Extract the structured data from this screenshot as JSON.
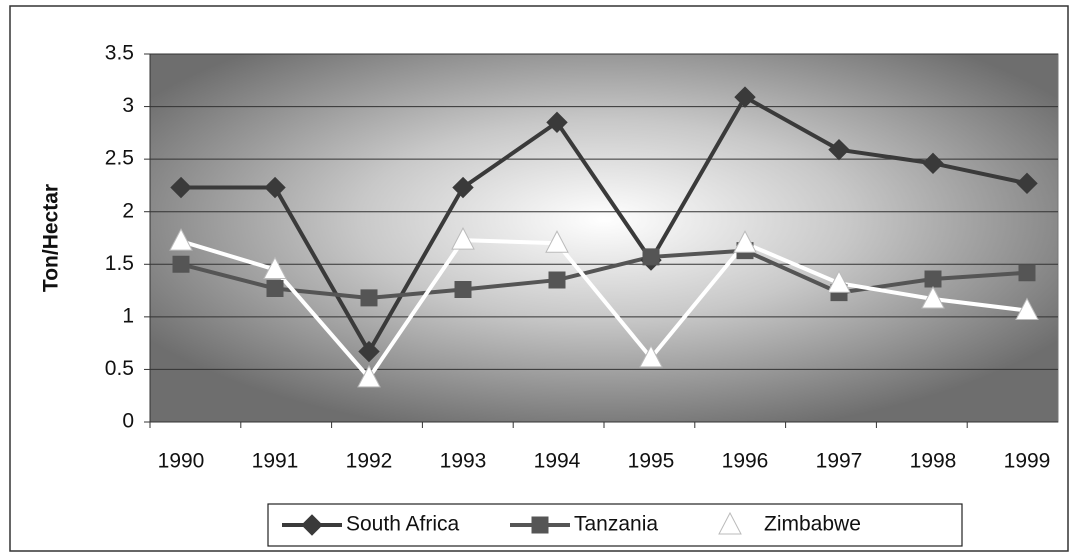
{
  "chart_data": {
    "type": "line",
    "y_label": "Ton/Hectar",
    "categories": [
      "1990",
      "1991",
      "1992",
      "1993",
      "1994",
      "1995",
      "1996",
      "1997",
      "1998",
      "1999"
    ],
    "series": [
      {
        "name": "South Africa",
        "color": "#3a3a3a",
        "marker": "diamond",
        "values": [
          2.23,
          2.23,
          0.67,
          2.23,
          2.85,
          1.54,
          3.09,
          2.59,
          2.46,
          2.27
        ]
      },
      {
        "name": "Tanzania",
        "color": "#555555",
        "marker": "square",
        "values": [
          1.5,
          1.27,
          1.18,
          1.26,
          1.35,
          1.57,
          1.63,
          1.23,
          1.36,
          1.42
        ]
      },
      {
        "name": "Zimbabwe",
        "color": "#ffffff",
        "marker": "triangle",
        "values": [
          1.72,
          1.45,
          0.42,
          1.73,
          1.7,
          0.61,
          1.7,
          1.32,
          1.17,
          1.06
        ]
      }
    ],
    "ylim": [
      0,
      3.5
    ],
    "yticks": [
      0,
      0.5,
      1,
      1.5,
      2,
      2.5,
      3,
      3.5
    ],
    "grid": true,
    "legend": "bottom"
  }
}
